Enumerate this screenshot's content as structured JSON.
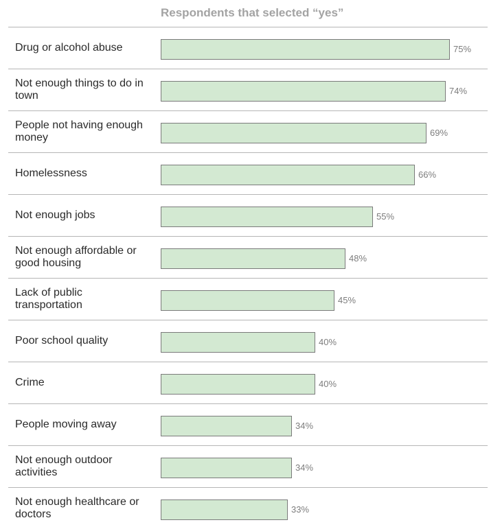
{
  "chart_data": {
    "type": "bar",
    "orientation": "horizontal",
    "title": "Respondents that selected “yes”",
    "categories": [
      "Drug or alcohol abuse",
      "Not enough things to do in town",
      "People not having enough money",
      "Homelessness",
      "Not enough jobs",
      "Not enough affordable or good housing",
      "Lack of public transportation",
      "Poor school quality",
      "Crime",
      "People moving away",
      "Not enough outdoor activities",
      "Not enough healthcare or doctors"
    ],
    "values": [
      75,
      74,
      69,
      66,
      55,
      48,
      45,
      40,
      40,
      34,
      34,
      33
    ],
    "value_labels": [
      "75%",
      "74%",
      "69%",
      "66%",
      "55%",
      "48%",
      "45%",
      "40%",
      "40%",
      "34%",
      "34%",
      "33%"
    ],
    "unit": "%",
    "xlim": [
      0,
      100
    ],
    "grid": false,
    "bar_color": "#d3e9d2",
    "bar_border_color": "#7a7a7a"
  }
}
